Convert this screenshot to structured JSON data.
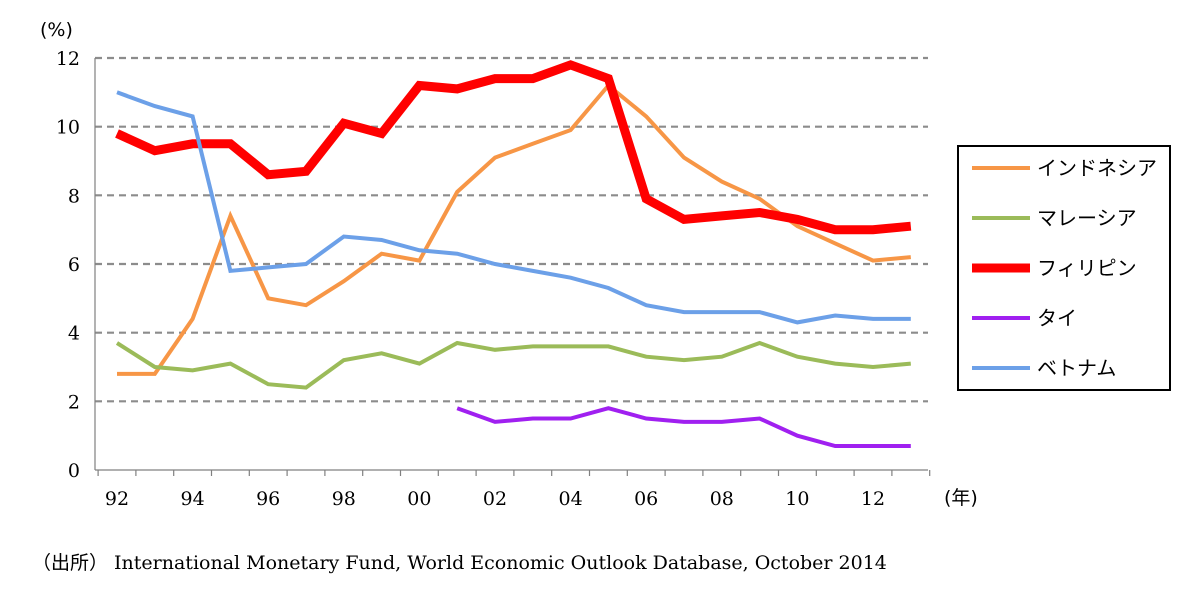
{
  "chart_data": {
    "type": "line",
    "y_unit": "(%)",
    "x_unit": "(年)",
    "ylim": [
      0,
      12
    ],
    "y_ticks": [
      "0",
      "2",
      "4",
      "6",
      "8",
      "10",
      "12"
    ],
    "grid": "horizontal dashed",
    "legend_position": "right",
    "x": [
      "92",
      "93",
      "94",
      "95",
      "96",
      "97",
      "98",
      "99",
      "00",
      "01",
      "02",
      "03",
      "04",
      "05",
      "06",
      "07",
      "08",
      "09",
      "10",
      "11",
      "12",
      "13"
    ],
    "x_tick_labels": [
      "92",
      "94",
      "96",
      "98",
      "00",
      "02",
      "04",
      "06",
      "08",
      "10",
      "12"
    ],
    "series": [
      {
        "name": "インドネシア",
        "color": "#f79646",
        "values": [
          2.8,
          2.8,
          4.4,
          7.4,
          5.0,
          4.8,
          5.5,
          6.3,
          6.1,
          8.1,
          9.1,
          9.5,
          9.9,
          11.2,
          10.3,
          9.1,
          8.4,
          7.9,
          7.1,
          6.6,
          6.1,
          6.2
        ]
      },
      {
        "name": "マレーシア",
        "color": "#9bbb59",
        "values": [
          3.7,
          3.0,
          2.9,
          3.1,
          2.5,
          2.4,
          3.2,
          3.4,
          3.1,
          3.7,
          3.5,
          3.6,
          3.6,
          3.6,
          3.3,
          3.2,
          3.3,
          3.7,
          3.3,
          3.1,
          3.0,
          3.1
        ]
      },
      {
        "name": "フィリピン",
        "color": "#ff0000",
        "values": [
          9.8,
          9.3,
          9.5,
          9.5,
          8.6,
          8.7,
          10.1,
          9.8,
          11.2,
          11.1,
          11.4,
          11.4,
          11.8,
          11.4,
          7.9,
          7.3,
          7.4,
          7.5,
          7.3,
          7.0,
          7.0,
          7.1
        ]
      },
      {
        "name": "タイ",
        "color": "#a020f0",
        "values": [
          null,
          null,
          null,
          null,
          null,
          null,
          null,
          null,
          null,
          1.8,
          1.4,
          1.5,
          1.5,
          1.8,
          1.5,
          1.4,
          1.4,
          1.5,
          1.0,
          0.7,
          0.7,
          0.7
        ]
      },
      {
        "name": "ベトナム",
        "color": "#6ca0e8",
        "values": [
          11.0,
          10.6,
          10.3,
          5.8,
          5.9,
          6.0,
          6.8,
          6.7,
          6.4,
          6.3,
          6.0,
          5.8,
          5.6,
          5.3,
          4.8,
          4.6,
          4.6,
          4.6,
          4.3,
          4.5,
          4.4,
          4.4
        ]
      }
    ]
  },
  "source": "（出所） International Monetary Fund, World Economic Outlook Database, October 2014"
}
